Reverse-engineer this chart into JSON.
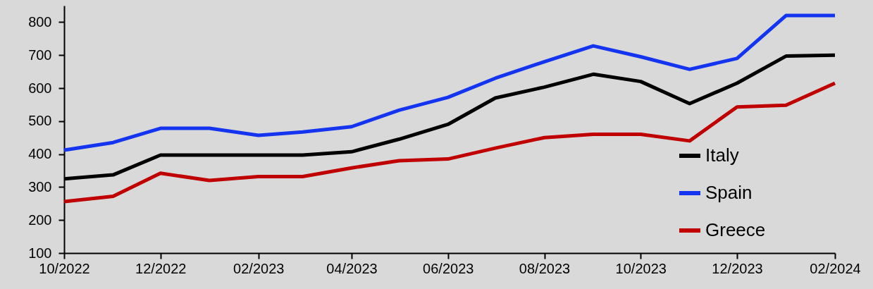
{
  "chart_data": {
    "type": "line",
    "x": [
      "2022-10",
      "2022-11",
      "2022-12",
      "2023-01",
      "2023-02",
      "2023-03",
      "2023-04",
      "2023-05",
      "2023-06",
      "2023-07",
      "2023-08",
      "2023-09",
      "2023-10",
      "2023-11",
      "2023-12",
      "2024-01",
      "2024-02"
    ],
    "series": [
      {
        "name": "Italy",
        "color": "#000000",
        "values": [
          325,
          337,
          397,
          397,
          397,
          397,
          407,
          445,
          490,
          570,
          603,
          642,
          620,
          553,
          615,
          697,
          700
        ]
      },
      {
        "name": "Spain",
        "color": "#1434f0",
        "values": [
          412,
          435,
          478,
          478,
          457,
          467,
          483,
          533,
          572,
          630,
          680,
          728,
          695,
          657,
          690,
          820,
          820
        ]
      },
      {
        "name": "Greece",
        "color": "#c00000",
        "values": [
          256,
          272,
          342,
          320,
          332,
          332,
          358,
          380,
          385,
          418,
          450,
          460,
          460,
          440,
          543,
          548,
          615
        ]
      }
    ],
    "xlim": [
      "2022-10",
      "2024-02"
    ],
    "xticks": [
      {
        "value": "2022-10",
        "label": "10/2022"
      },
      {
        "value": "2022-12",
        "label": "12/2022"
      },
      {
        "value": "2023-02",
        "label": "02/2023"
      },
      {
        "value": "2023-04",
        "label": "04/2023"
      },
      {
        "value": "2023-06",
        "label": "06/2023"
      },
      {
        "value": "2023-08",
        "label": "08/2023"
      },
      {
        "value": "2023-10",
        "label": "10/2023"
      },
      {
        "value": "2023-12",
        "label": "12/2023"
      },
      {
        "value": "2024-02",
        "label": "02/2024"
      }
    ],
    "ylim": [
      100,
      850
    ],
    "yticks": [
      100,
      200,
      300,
      400,
      500,
      600,
      700,
      800
    ],
    "legend": "bottom right",
    "line_style": "solid",
    "marker": "none"
  }
}
